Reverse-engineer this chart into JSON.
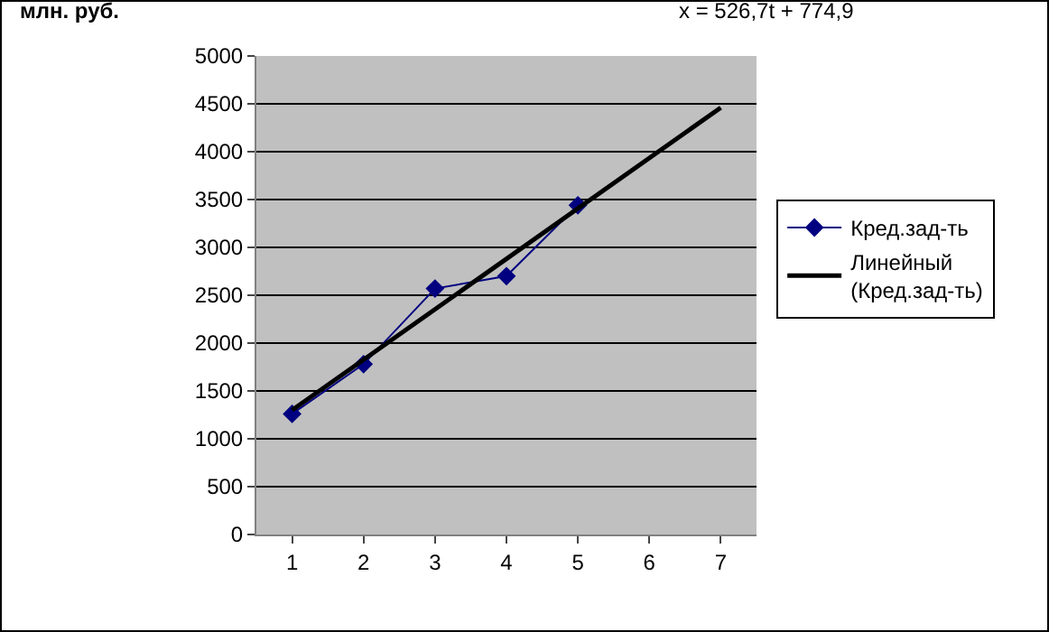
{
  "chart_data": {
    "type": "line",
    "ylabel": "млн. руб.",
    "annotations": [
      "x = 526,7t + 774,9"
    ],
    "xlim": [
      0.5,
      7.5
    ],
    "xticks": [
      1,
      2,
      3,
      4,
      5,
      6,
      7
    ],
    "ylim": [
      0,
      5000
    ],
    "yticks": [
      0,
      500,
      1000,
      1500,
      2000,
      2500,
      3000,
      3500,
      4000,
      4500,
      5000
    ],
    "grid": "y",
    "legend": "right",
    "series": [
      {
        "name": "Кред.зад-ть",
        "color": "#000080",
        "x": [
          1,
          2,
          3,
          4,
          5
        ],
        "values": [
          1260,
          1780,
          2570,
          2700,
          3440
        ],
        "marker": "diamond"
      },
      {
        "name": "Линейный (Кред.зад-ть)",
        "color": "#000000",
        "type": "line",
        "x": [
          1,
          7
        ],
        "values": [
          1300,
          4460
        ],
        "marker": "none"
      }
    ]
  }
}
